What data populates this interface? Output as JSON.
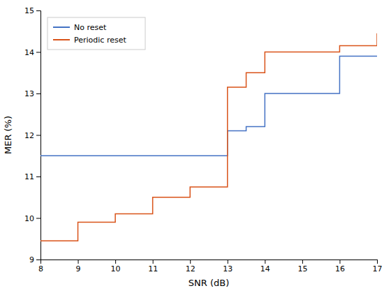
{
  "chart_data": {
    "type": "line",
    "xlabel": "SNR (dB)",
    "ylabel": "MER (%)",
    "xlim": [
      8,
      17
    ],
    "ylim": [
      9,
      15
    ],
    "xticks": [
      8,
      9,
      10,
      11,
      12,
      13,
      14,
      15,
      16,
      17
    ],
    "yticks": [
      9,
      10,
      11,
      12,
      13,
      14,
      15
    ],
    "series": [
      {
        "name": "No reset",
        "color": "#4472c4",
        "line_style": "step",
        "x": [
          8,
          12,
          13,
          13.5,
          14,
          15,
          16,
          17
        ],
        "values": [
          11.5,
          11.5,
          12.1,
          12.2,
          13.0,
          13.0,
          13.9,
          13.9
        ]
      },
      {
        "name": "Periodic reset",
        "color": "#d95319",
        "line_style": "step",
        "x": [
          8,
          9,
          10,
          11,
          12,
          13,
          13.5,
          14,
          16,
          17
        ],
        "values": [
          9.45,
          9.9,
          10.1,
          10.5,
          10.75,
          13.15,
          13.5,
          14.0,
          14.15,
          14.45
        ]
      }
    ],
    "legend": "upper left",
    "grid": false
  }
}
